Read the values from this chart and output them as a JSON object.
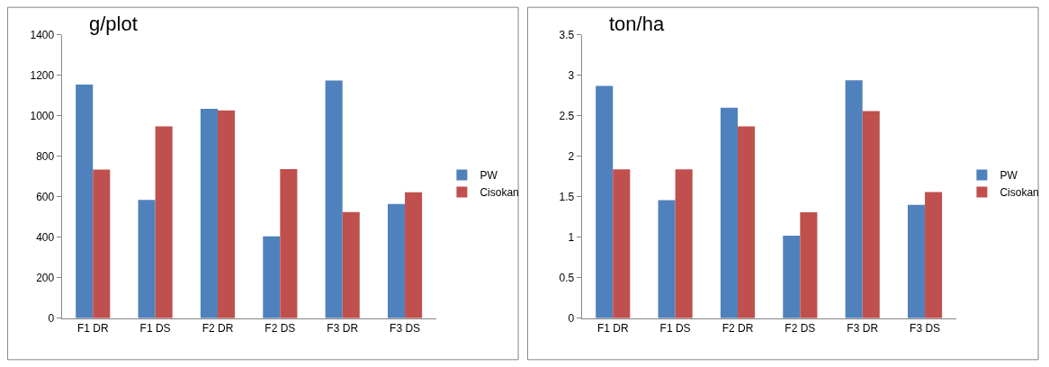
{
  "chart_data": [
    {
      "type": "bar",
      "title": "g/plot",
      "categories": [
        "F1 DR",
        "F1 DS",
        "F2 DR",
        "F2 DS",
        "F3 DR",
        "F3 DS"
      ],
      "series": [
        {
          "name": "PW",
          "color": "#4f81bd",
          "values": [
            1155,
            585,
            1035,
            405,
            1175,
            565
          ]
        },
        {
          "name": "Cisokan",
          "color": "#c0504d",
          "values": [
            735,
            948,
            1027,
            737,
            525,
            623
          ]
        }
      ],
      "ylim": [
        0,
        1400
      ],
      "yticks": [
        0,
        200,
        400,
        600,
        800,
        1000,
        1200,
        1400
      ],
      "grid": false,
      "legend": "right"
    },
    {
      "type": "bar",
      "title": "ton/ha",
      "categories": [
        "F1 DR",
        "F1 DS",
        "F2 DR",
        "F2 DS",
        "F3 DR",
        "F3 DS"
      ],
      "series": [
        {
          "name": "PW",
          "color": "#4f81bd",
          "values": [
            2.87,
            1.46,
            2.6,
            1.02,
            2.94,
            1.4
          ]
        },
        {
          "name": "Cisokan",
          "color": "#c0504d",
          "values": [
            1.84,
            1.84,
            2.37,
            1.31,
            2.56,
            1.56
          ]
        }
      ],
      "ylim": [
        0,
        3.5
      ],
      "yticks": [
        0,
        0.5,
        1,
        1.5,
        2,
        2.5,
        3,
        3.5
      ],
      "grid": false,
      "legend": "right"
    }
  ]
}
